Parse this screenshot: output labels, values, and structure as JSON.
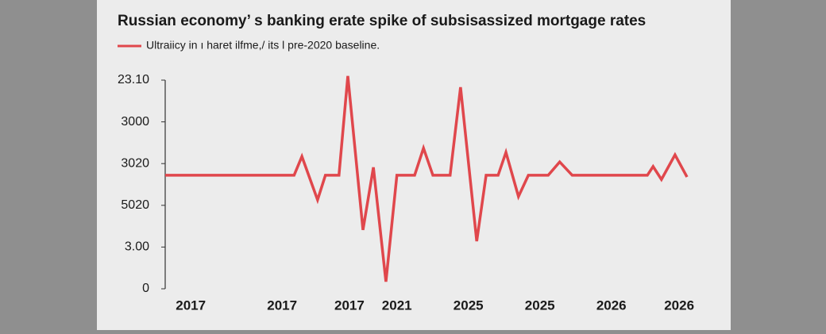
{
  "chart_data": {
    "type": "line",
    "title": "Russian economy’ s banking erate spike of subsisassized mortgage rates",
    "x": [
      0,
      24.7,
      26.2,
      29.2,
      30.7,
      33.3,
      35.0,
      37.9,
      39.9,
      42.3,
      44.4,
      47.8,
      49.5,
      51.3,
      54.6,
      56.6,
      59.7,
      61.5,
      63.8,
      65.3,
      67.7,
      69.6,
      73.4,
      75.6,
      78.0,
      92.4,
      93.5,
      95.1,
      97.7,
      100
    ],
    "series": [
      {
        "name": "Ultraiicy in ı haret ilfme,/ its l pre-2020 baseline.",
        "color": "#e0474c",
        "values": [
          2.72,
          2.72,
          3.17,
          2.13,
          2.72,
          2.72,
          5.1,
          1.41,
          2.91,
          0.17,
          2.72,
          2.72,
          3.37,
          2.72,
          2.72,
          4.83,
          1.14,
          2.72,
          2.72,
          3.27,
          2.21,
          2.72,
          2.72,
          3.04,
          2.72,
          2.72,
          2.93,
          2.62,
          3.21,
          2.68
        ]
      }
    ],
    "xlim": [
      0,
      100
    ],
    "xticks": [
      {
        "value": 4.9,
        "label": "2017"
      },
      {
        "value": 22.4,
        "label": "2017"
      },
      {
        "value": 35.3,
        "label": "2017"
      },
      {
        "value": 44.4,
        "label": "2021"
      },
      {
        "value": 58.1,
        "label": "2025"
      },
      {
        "value": 71.8,
        "label": "2025"
      },
      {
        "value": 85.5,
        "label": "2026"
      },
      {
        "value": 98.5,
        "label": "2026"
      }
    ],
    "ylim": [
      0,
      5.2
    ],
    "yticks": [
      0,
      {
        "value": 1,
        "label": "3.00"
      },
      {
        "value": 2,
        "label": "5020"
      },
      {
        "value": 3,
        "label": "3020"
      },
      {
        "value": 4,
        "label": "3000"
      },
      {
        "value": 5,
        "label": "23.10"
      }
    ],
    "grid": false
  }
}
